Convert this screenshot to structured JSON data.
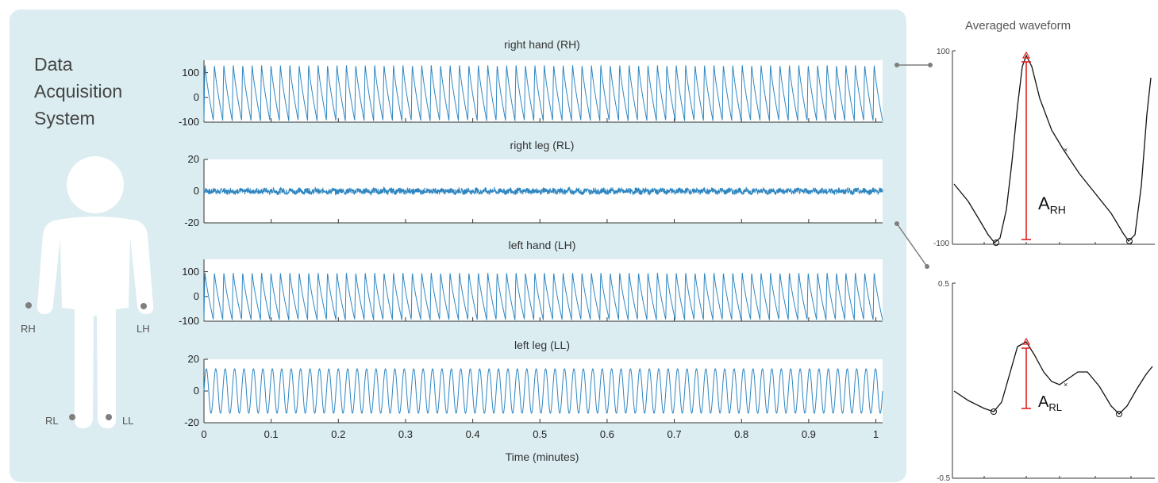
{
  "system": {
    "title_lines": [
      "Data",
      "Acquisition",
      "System"
    ]
  },
  "electrodes": [
    "RH",
    "LH",
    "RL",
    "LL"
  ],
  "chart_data": [
    {
      "type": "line",
      "title": "right hand (RH)",
      "xlabel": "",
      "ylabel": "",
      "xlim": [
        0,
        1.01
      ],
      "ylim": [
        -100,
        150
      ],
      "yticks": [
        100,
        0,
        -100
      ],
      "cycles": 72,
      "amplitude_range": [
        -95,
        130
      ],
      "color": "#2e86c1"
    },
    {
      "type": "line",
      "title": "right leg (RL)",
      "xlabel": "",
      "ylabel": "",
      "xlim": [
        0,
        1.01
      ],
      "ylim": [
        -20,
        20
      ],
      "yticks": [
        20,
        0,
        -20
      ],
      "amplitude_range": [
        -2,
        2
      ],
      "color": "#2e86c1"
    },
    {
      "type": "line",
      "title": "left hand (LH)",
      "xlabel": "",
      "ylabel": "",
      "xlim": [
        0,
        1.01
      ],
      "ylim": [
        -100,
        150
      ],
      "yticks": [
        100,
        0,
        -100
      ],
      "cycles": 72,
      "amplitude_range": [
        -95,
        95
      ],
      "color": "#2e86c1"
    },
    {
      "type": "line",
      "title": "left leg (LL)",
      "xlabel": "Time (minutes)",
      "ylabel": "",
      "xlim": [
        0,
        1.01
      ],
      "ylim": [
        -20,
        20
      ],
      "yticks": [
        20,
        0,
        -20
      ],
      "xticks": [
        0,
        0.1,
        0.2,
        0.3,
        0.4,
        0.5,
        0.6,
        0.7,
        0.8,
        0.9,
        1
      ],
      "cycles": 72,
      "amplitude_range": [
        -14,
        14
      ],
      "color": "#2e86c1"
    },
    {
      "type": "line",
      "title": "Averaged waveform",
      "ylim": [
        -100,
        100
      ],
      "yticks": [
        100,
        -100
      ],
      "annotation": {
        "label": "A",
        "subscript": "RH"
      },
      "marker_color": "#e02020"
    },
    {
      "type": "line",
      "title": "",
      "ylim": [
        -0.5,
        0.5
      ],
      "yticks": [
        0.5,
        -0.5
      ],
      "annotation": {
        "label": "A",
        "subscript": "RL"
      },
      "marker_color": "#e02020"
    }
  ]
}
